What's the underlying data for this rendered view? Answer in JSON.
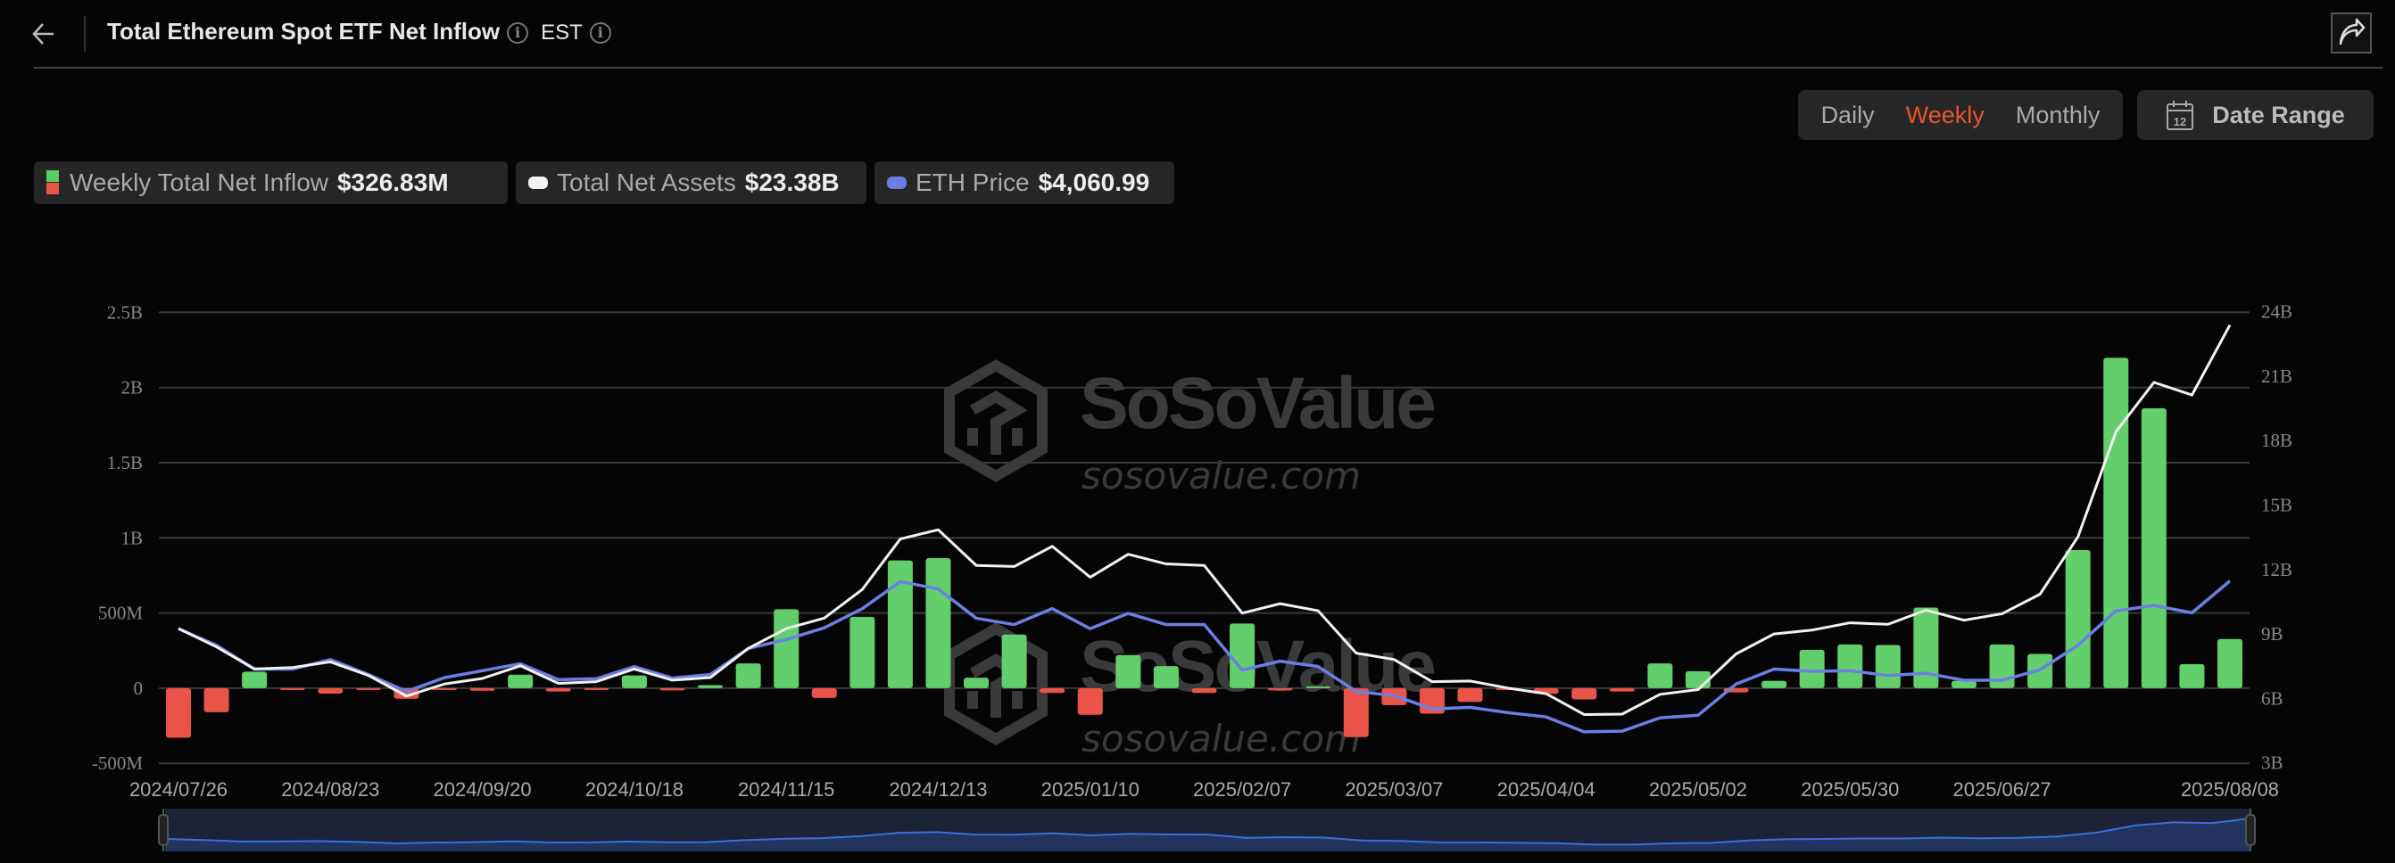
{
  "header": {
    "title": "Total Ethereum Spot ETF Net Inflow",
    "timezone": "EST",
    "back_icon": "arrow-left-icon",
    "info_icon": "info-icon",
    "share_icon": "share-icon"
  },
  "controls": {
    "periods": [
      "Daily",
      "Weekly",
      "Monthly"
    ],
    "active_period": "Weekly",
    "date_range_label": "Date Range",
    "date_range_icon": "calendar-icon",
    "calendar_day": "12"
  },
  "legend": [
    {
      "label": "Weekly Total Net Inflow",
      "value": "$326.83M",
      "colors": [
        "#5ccc68",
        "#e8554a"
      ]
    },
    {
      "label": "Total Net Assets",
      "value": "$23.38B",
      "color": "#f2f2f2"
    },
    {
      "label": "ETH Price",
      "value": "$4,060.99",
      "color": "#6b7fe3"
    }
  ],
  "watermark": {
    "brand": "SoSoValue",
    "site": "sosovalue.com"
  },
  "colors": {
    "positive": "#63cf6c",
    "negative": "#ea5448",
    "net_assets": "#f2f2f2",
    "eth_price": "#6b7fe3",
    "grid": "#3a3a3a",
    "accent": "#e8552d"
  },
  "chart_data": {
    "type": "bar+line",
    "left_axis": {
      "ticks": [
        "2.5B",
        "2B",
        "1.5B",
        "1B",
        "500M",
        "0",
        "-500M"
      ],
      "range": [
        -500000000,
        2500000000
      ]
    },
    "right_axis": {
      "ticks": [
        "24B",
        "21B",
        "18B",
        "15B",
        "12B",
        "9B",
        "6B",
        "3B"
      ],
      "range": [
        3,
        24
      ]
    },
    "x_tick_labels": [
      "2024/07/26",
      "2024/08/23",
      "2024/09/20",
      "2024/10/18",
      "2024/11/15",
      "2024/12/13",
      "2025/01/10",
      "2025/02/07",
      "2025/03/07",
      "2025/04/04",
      "2025/05/02",
      "2025/05/30",
      "2025/06/27",
      "2025/08/08"
    ],
    "x_tick_indices": [
      0,
      4,
      8,
      12,
      16,
      20,
      24,
      28,
      32,
      36,
      40,
      44,
      48,
      54
    ],
    "grid": true,
    "legend_position": "top-left",
    "weeks": 55,
    "first_week": "2024/07/26",
    "last_week": "2025/08/08",
    "series": [
      {
        "name": "Weekly Total Net Inflow",
        "type": "bar",
        "axis": "left",
        "unit": "USD millions",
        "values": [
          -330,
          -160,
          110,
          -5,
          -36,
          -5,
          -70,
          -5,
          -17,
          90,
          -22,
          -3,
          85,
          -15,
          20,
          165,
          525,
          -65,
          475,
          850,
          865,
          70,
          357,
          -32,
          -177,
          220,
          147,
          -32,
          430,
          -15,
          2,
          -325,
          -113,
          -170,
          -92,
          -10,
          -38,
          -75,
          -22,
          165,
          113,
          -28,
          49,
          255,
          291,
          287,
          536,
          49,
          291,
          228,
          919,
          2198,
          1862,
          160,
          326.83
        ]
      },
      {
        "name": "Total Net Assets",
        "type": "line",
        "axis": "right",
        "unit": "USD billions",
        "values": [
          9.25,
          8.4,
          7.37,
          7.44,
          7.7,
          7.07,
          6.11,
          6.67,
          6.93,
          7.52,
          6.7,
          6.78,
          7.37,
          6.85,
          6.97,
          8.33,
          9.25,
          9.74,
          11.07,
          13.42,
          13.85,
          12.19,
          12.14,
          13.08,
          11.64,
          12.71,
          12.26,
          12.19,
          9.97,
          10.41,
          10.08,
          8.11,
          7.81,
          6.78,
          6.81,
          6.48,
          6.22,
          5.25,
          5.27,
          6.19,
          6.41,
          8.07,
          9.0,
          9.18,
          9.52,
          9.45,
          10.11,
          9.64,
          9.94,
          10.85,
          13.52,
          18.41,
          20.71,
          20.12,
          23.38
        ]
      },
      {
        "name": "ETH Price",
        "type": "line",
        "axis": "none",
        "unit": "USD",
        "values": [
          3276,
          3004,
          2611,
          2611,
          2768,
          2522,
          2244,
          2470,
          2585,
          2700,
          2438,
          2454,
          2653,
          2464,
          2522,
          2951,
          3098,
          3291,
          3606,
          4050,
          3930,
          3448,
          3344,
          3606,
          3276,
          3527,
          3344,
          3344,
          2595,
          2742,
          2653,
          2244,
          2176,
          1956,
          1983,
          1894,
          1826,
          1580,
          1590,
          1810,
          1852,
          2365,
          2611,
          2574,
          2585,
          2506,
          2543,
          2428,
          2428,
          2600,
          3004,
          3569,
          3658,
          3537,
          4060.99
        ]
      }
    ]
  }
}
